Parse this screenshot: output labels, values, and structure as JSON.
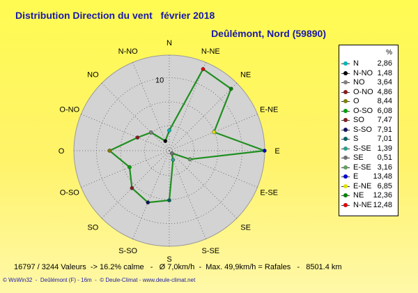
{
  "title": "Distribution Direction du vent   février 2018",
  "subtitle": "Deûlémont, Nord (59890)",
  "legend": {
    "unit": "%"
  },
  "footer": {
    "stats": "16797 / 3244 Valeurs  -> 16.2% calme   -   Ø 7,0km/h  -  Max. 49,9km/h = Rafales   -   8501.4 km",
    "credits": "© WsWin32  -  Deûlémont (F) - 16m  -  © Deule-Climat - www.deule-climat.net"
  },
  "colors": {
    "background": "#fff76a",
    "disc": "#d3d3d3",
    "series_line": "#1f8f1f",
    "title": "#1a1aa6"
  },
  "chart_data": {
    "type": "polar-line",
    "title": "Distribution Direction du vent   février 2018",
    "radial_max": 13.5,
    "radial_ticks": [
      10
    ],
    "directions": [
      "N",
      "N-NE",
      "NE",
      "E-NE",
      "E",
      "E-SE",
      "SE",
      "S-SE",
      "S",
      "S-SO",
      "SO",
      "O-SO",
      "O",
      "O-NO",
      "NO",
      "N-NO"
    ],
    "series": [
      {
        "values": [
          2.86,
          12.48,
          12.36,
          6.85,
          13.48,
          3.16,
          0.51,
          1.39,
          7.01,
          7.91,
          7.47,
          6.08,
          8.44,
          4.86,
          3.64,
          1.48
        ]
      }
    ],
    "legend_order": [
      "N",
      "N-NO",
      "NO",
      "O-NO",
      "O",
      "O-SO",
      "SO",
      "S-SO",
      "S",
      "S-SE",
      "SE",
      "E-SE",
      "E",
      "E-NE",
      "NE",
      "N-NE"
    ],
    "legend_values": [
      "2,86",
      "1,48",
      "3,64",
      "4,86",
      "8,44",
      "6,08",
      "7,47",
      "7,91",
      "7,01",
      "1,39",
      "0,51",
      "3,16",
      "13,48",
      "6,85",
      "12,36",
      "12,48"
    ],
    "marker_colors": {
      "N": "#00b4b4",
      "N-NO": "#000000",
      "NO": "#808080",
      "O-NO": "#8a1a1a",
      "O": "#808000",
      "O-SO": "#00a000",
      "SO": "#802020",
      "S-SO": "#101060",
      "S": "#006060",
      "S-SE": "#2aa08a",
      "SE": "#707070",
      "E-SE": "#60a060",
      "E": "#0000d0",
      "E-NE": "#e0e000",
      "NE": "#008000",
      "N-NE": "#e00000"
    }
  }
}
